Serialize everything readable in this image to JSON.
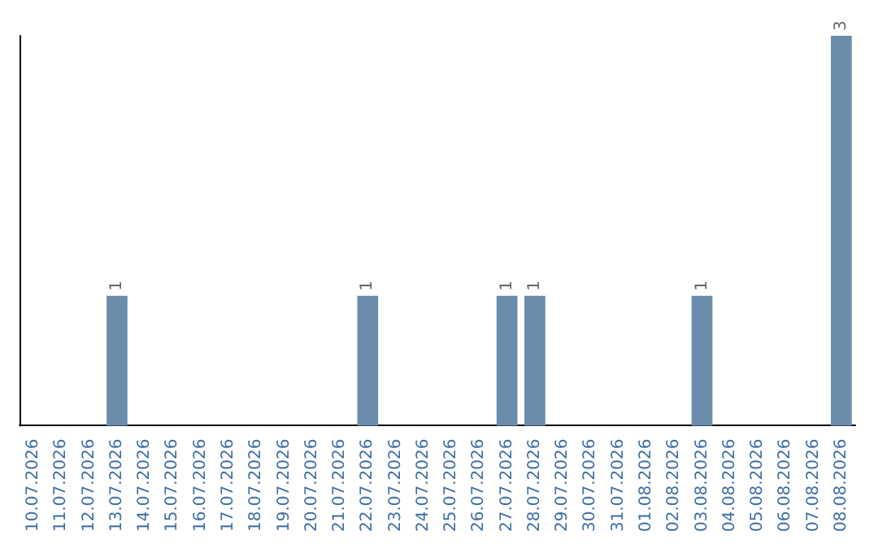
{
  "chart_data": {
    "type": "bar",
    "categories": [
      "10.07.2026",
      "11.07.2026",
      "12.07.2026",
      "13.07.2026",
      "14.07.2026",
      "15.07.2026",
      "16.07.2026",
      "17.07.2026",
      "18.07.2026",
      "19.07.2026",
      "20.07.2026",
      "21.07.2026",
      "22.07.2026",
      "23.07.2026",
      "24.07.2026",
      "25.07.2026",
      "26.07.2026",
      "27.07.2026",
      "28.07.2026",
      "29.07.2026",
      "30.07.2026",
      "31.07.2026",
      "01.08.2026",
      "02.08.2026",
      "03.08.2026",
      "04.08.2026",
      "05.08.2026",
      "06.08.2026",
      "07.08.2026",
      "08.08.2026"
    ],
    "values": [
      null,
      null,
      null,
      1,
      null,
      null,
      null,
      null,
      null,
      null,
      null,
      null,
      1,
      null,
      null,
      null,
      null,
      1,
      1,
      null,
      null,
      null,
      null,
      null,
      1,
      null,
      null,
      null,
      null,
      3
    ],
    "color": "#6b8cab",
    "data_labels": true
  }
}
